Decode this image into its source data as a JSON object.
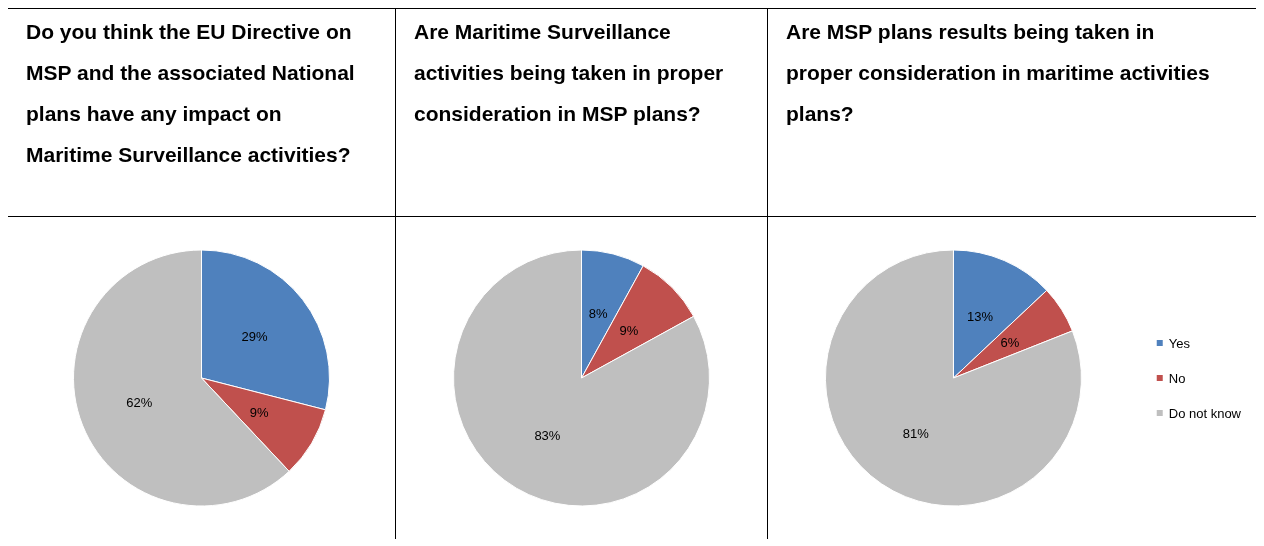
{
  "chart_data": [
    {
      "type": "pie",
      "title": "Do you think the EU Directive on MSP and the associated National plans have any impact on Maritime Surveillance activities?",
      "categories": [
        null,
        null,
        null
      ],
      "values": [
        29,
        9,
        62
      ],
      "value_labels": [
        "29%",
        "9%",
        "62%"
      ],
      "colors": [
        "#4f81bd",
        "#c0504d",
        "#bfbfbf"
      ],
      "legend": false
    },
    {
      "type": "pie",
      "title": "Are Maritime Surveillance activities being taken in proper consideration in MSP plans?",
      "categories": [
        null,
        null,
        null
      ],
      "values": [
        8,
        9,
        83
      ],
      "value_labels": [
        "8%",
        "9%",
        "83%"
      ],
      "colors": [
        "#4f81bd",
        "#c0504d",
        "#bfbfbf"
      ],
      "legend": false
    },
    {
      "type": "pie",
      "title": "Are MSP plans results being taken in proper consideration in maritime activities plans?",
      "categories": [
        "Yes",
        "No",
        "Do not know"
      ],
      "values": [
        13,
        6,
        81
      ],
      "value_labels": [
        "13%",
        "6%",
        "81%"
      ],
      "colors": [
        "#4f81bd",
        "#c0504d",
        "#bfbfbf"
      ],
      "legend": "right"
    }
  ]
}
